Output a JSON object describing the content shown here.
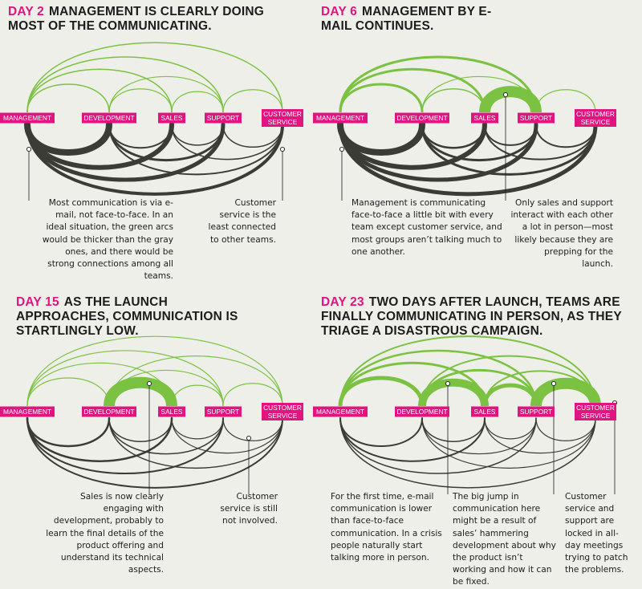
{
  "colors": {
    "email": "#3c3c37",
    "face": "#7cc242",
    "label_bg": "#e0157f",
    "label_text": "#ffffff",
    "accent": "#e0157f",
    "background": "#efefea"
  },
  "teams": [
    "MANAGEMENT",
    "DEVELOPMENT",
    "SALES",
    "SUPPORT",
    "CUSTOMER SERVICE"
  ],
  "panels": [
    {
      "day": "DAY 2",
      "title": "MANAGEMENT IS CLEARLY DOING MOST OF THE COMMUNICATING.",
      "notes": [
        "Most communication is via e-mail, not face-to-face. In an ideal situation, the green arcs would be thicker than the gray ones, and there would be strong connections among all teams.",
        "Customer service is the least connected to other teams."
      ],
      "email": [
        [
          0,
          1,
          8
        ],
        [
          0,
          2,
          6
        ],
        [
          0,
          3,
          5
        ],
        [
          0,
          4,
          4
        ],
        [
          1,
          2,
          2
        ],
        [
          1,
          3,
          3
        ],
        [
          1,
          4,
          2
        ],
        [
          2,
          3,
          1.5
        ],
        [
          2,
          4,
          1.5
        ],
        [
          3,
          4,
          1.5
        ]
      ],
      "face": [
        [
          0,
          1,
          1.5
        ],
        [
          0,
          2,
          1.5
        ],
        [
          0,
          3,
          1.5
        ],
        [
          0,
          4,
          1.5
        ],
        [
          1,
          2,
          1.2
        ],
        [
          1,
          3,
          1.2
        ],
        [
          2,
          3,
          1.2
        ],
        [
          3,
          4,
          1.2
        ]
      ]
    },
    {
      "day": "DAY 6",
      "title": "MANAGEMENT BY E-MAIL CONTINUES.",
      "notes": [
        "Management is communicating face-to-face a little bit with every team except customer service, and most groups aren’t talking much to one another.",
        "Only sales and support interact with each other a lot in person—most likely because they are prepping for the launch."
      ],
      "email": [
        [
          0,
          1,
          8
        ],
        [
          0,
          2,
          6
        ],
        [
          0,
          3,
          5
        ],
        [
          0,
          4,
          5
        ],
        [
          1,
          2,
          2.5
        ],
        [
          1,
          3,
          3
        ],
        [
          1,
          4,
          3
        ],
        [
          2,
          3,
          2
        ],
        [
          2,
          4,
          2
        ],
        [
          3,
          4,
          2
        ]
      ],
      "face": [
        [
          0,
          1,
          3
        ],
        [
          0,
          2,
          3
        ],
        [
          0,
          3,
          3
        ],
        [
          1,
          2,
          1.5
        ],
        [
          1,
          3,
          1.2
        ],
        [
          2,
          3,
          14
        ],
        [
          3,
          4,
          1.2
        ]
      ]
    },
    {
      "day": "DAY 15",
      "title": "AS THE LAUNCH APPROACHES, COMMUNICATION IS STARTLINGLY LOW.",
      "notes": [
        "Sales is now clearly engaging with development, probably to learn the final details of the product offering and understand its technical aspects.",
        "Customer service is still not involved."
      ],
      "email": [
        [
          0,
          1,
          2.5
        ],
        [
          0,
          2,
          2.5
        ],
        [
          0,
          3,
          2
        ],
        [
          0,
          4,
          2
        ],
        [
          1,
          2,
          1.5
        ],
        [
          1,
          3,
          1.5
        ],
        [
          1,
          4,
          1.5
        ],
        [
          2,
          3,
          1.2
        ],
        [
          2,
          4,
          1.2
        ],
        [
          3,
          4,
          1.2
        ]
      ],
      "face": [
        [
          0,
          1,
          1.2
        ],
        [
          0,
          2,
          1.2
        ],
        [
          0,
          3,
          1.2
        ],
        [
          0,
          4,
          1.2
        ],
        [
          1,
          2,
          14
        ],
        [
          1,
          3,
          1.2
        ],
        [
          1,
          4,
          1.2
        ],
        [
          2,
          3,
          1.2
        ],
        [
          3,
          4,
          1.2
        ]
      ]
    },
    {
      "day": "DAY 23",
      "title": "TWO DAYS AFTER LAUNCH, TEAMS ARE FINALLY COMMUNICATING IN PERSON, AS THEY TRIAGE A DISASTROUS CAMPAIGN.",
      "notes": [
        "For the first time, e-mail communication is lower than face-to-face communication. In a crisis people naturally start talking more in person.",
        "The big jump in communication here might be a result of sales’ hammering development about why the product isn’t working and how it can be fixed.",
        "Customer service and support are locked in all-day meetings trying to patch the problems."
      ],
      "email": [
        [
          0,
          1,
          2
        ],
        [
          0,
          2,
          2
        ],
        [
          0,
          3,
          1.5
        ],
        [
          0,
          4,
          1.5
        ],
        [
          1,
          2,
          1.5
        ],
        [
          1,
          3,
          1.2
        ],
        [
          1,
          4,
          1.2
        ],
        [
          2,
          3,
          1.2
        ],
        [
          2,
          4,
          1.2
        ],
        [
          3,
          4,
          1.2
        ]
      ],
      "face": [
        [
          0,
          1,
          5
        ],
        [
          0,
          2,
          3
        ],
        [
          0,
          3,
          2.5
        ],
        [
          0,
          4,
          2
        ],
        [
          1,
          2,
          10
        ],
        [
          1,
          3,
          3
        ],
        [
          1,
          4,
          2
        ],
        [
          2,
          3,
          5
        ],
        [
          2,
          4,
          2
        ],
        [
          3,
          4,
          14
        ]
      ]
    }
  ]
}
